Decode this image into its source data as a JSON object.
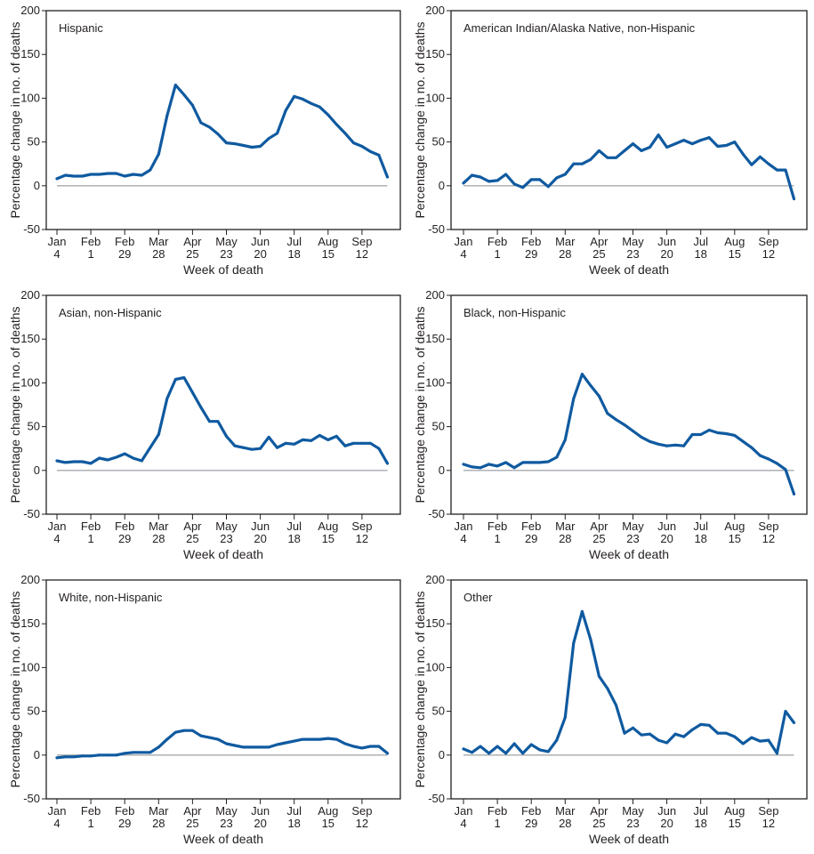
{
  "chart_data": [
    {
      "type": "line",
      "title": "Hispanic",
      "xlabel": "Week of death",
      "ylabel": "Percentage change in no. of deaths",
      "ylim": [
        -50,
        200
      ],
      "yticks": [
        "200",
        "150",
        "100",
        "50",
        "0",
        "-50"
      ],
      "grid": false,
      "values": [
        8,
        12,
        11,
        11,
        13,
        13,
        14,
        14,
        11,
        13,
        12,
        18,
        36,
        80,
        115,
        104,
        92,
        72,
        67,
        59,
        49,
        48,
        46,
        44,
        45,
        54,
        60,
        86,
        102,
        99,
        94,
        90,
        81,
        70,
        60,
        49,
        45,
        39,
        35,
        10
      ]
    },
    {
      "type": "line",
      "title": "American Indian/Alaska Native, non-Hispanic",
      "xlabel": "Week of death",
      "ylabel": "Percentage change in no. of deaths",
      "ylim": [
        -50,
        200
      ],
      "yticks": [
        "200",
        "150",
        "100",
        "50",
        "0",
        "-50"
      ],
      "grid": false,
      "values": [
        3,
        12,
        10,
        5,
        6,
        13,
        2,
        -2,
        7,
        7,
        -1,
        9,
        13,
        25,
        25,
        30,
        40,
        32,
        32,
        40,
        48,
        40,
        44,
        58,
        44,
        48,
        52,
        48,
        52,
        55,
        45,
        46,
        50,
        36,
        24,
        33,
        25,
        18,
        18,
        -15
      ]
    },
    {
      "type": "line",
      "title": "Asian, non-Hispanic",
      "xlabel": "Week of death",
      "ylabel": "Percentage change in no. of deaths",
      "ylim": [
        -50,
        200
      ],
      "yticks": [
        "200",
        "150",
        "100",
        "50",
        "0",
        "-50"
      ],
      "grid": false,
      "values": [
        11,
        9,
        10,
        10,
        8,
        14,
        12,
        15,
        19,
        14,
        11,
        26,
        41,
        82,
        104,
        106,
        89,
        72,
        56,
        56,
        39,
        28,
        26,
        24,
        25,
        38,
        26,
        31,
        30,
        35,
        34,
        40,
        35,
        39,
        28,
        31,
        31,
        31,
        25,
        8
      ]
    },
    {
      "type": "line",
      "title": "Black, non-Hispanic",
      "xlabel": "Week of death",
      "ylabel": "Percentage change in no. of deaths",
      "ylim": [
        -50,
        200
      ],
      "yticks": [
        "200",
        "150",
        "100",
        "50",
        "0",
        "-50"
      ],
      "grid": false,
      "values": [
        7,
        4,
        3,
        7,
        5,
        9,
        3,
        9,
        9,
        9,
        10,
        15,
        35,
        82,
        110,
        97,
        85,
        65,
        58,
        52,
        45,
        38,
        33,
        30,
        28,
        29,
        28,
        41,
        41,
        46,
        43,
        42,
        40,
        33,
        26,
        17,
        13,
        8,
        1,
        -27
      ]
    },
    {
      "type": "line",
      "title": "White, non-Hispanic",
      "xlabel": "Week of death",
      "ylabel": "Percentage change in no. of deaths",
      "ylim": [
        -50,
        200
      ],
      "yticks": [
        "200",
        "150",
        "100",
        "50",
        "0",
        "-50"
      ],
      "grid": false,
      "values": [
        -3,
        -2,
        -2,
        -1,
        -1,
        0,
        0,
        0,
        2,
        3,
        3,
        3,
        9,
        18,
        26,
        28,
        28,
        22,
        20,
        18,
        13,
        11,
        9,
        9,
        9,
        9,
        12,
        14,
        16,
        18,
        18,
        18,
        19,
        18,
        13,
        10,
        8,
        10,
        10,
        2
      ]
    },
    {
      "type": "line",
      "title": "Other",
      "xlabel": "Week of death",
      "ylabel": "Percentage change in no. of deaths",
      "ylim": [
        -50,
        200
      ],
      "yticks": [
        "200",
        "150",
        "100",
        "50",
        "0",
        "-50"
      ],
      "grid": false,
      "values": [
        7,
        3,
        10,
        2,
        10,
        2,
        13,
        2,
        12,
        6,
        4,
        17,
        43,
        128,
        164,
        132,
        90,
        76,
        57,
        25,
        31,
        23,
        24,
        17,
        14,
        24,
        21,
        29,
        35,
        34,
        25,
        25,
        21,
        13,
        20,
        16,
        17,
        2,
        50,
        37
      ]
    }
  ],
  "x_weeks": [
    "Jan 4",
    "Jan 11",
    "Jan 18",
    "Jan 25",
    "Feb 1",
    "Feb 8",
    "Feb 15",
    "Feb 22",
    "Feb 29",
    "Mar 7",
    "Mar 14",
    "Mar 21",
    "Mar 28",
    "Apr 4",
    "Apr 11",
    "Apr 18",
    "Apr 25",
    "May 2",
    "May 9",
    "May 16",
    "May 23",
    "May 30",
    "Jun 6",
    "Jun 13",
    "Jun 20",
    "Jun 27",
    "Jul 4",
    "Jul 11",
    "Jul 18",
    "Jul 25",
    "Aug 1",
    "Aug 8",
    "Aug 15",
    "Aug 22",
    "Aug 29",
    "Sep 5",
    "Sep 12",
    "Sep 19",
    "Sep 26",
    "Oct 3"
  ],
  "x_ticks": [
    [
      "Jan",
      "4"
    ],
    [
      "Feb",
      "1"
    ],
    [
      "Feb",
      "29"
    ],
    [
      "Mar",
      "28"
    ],
    [
      "Apr",
      "25"
    ],
    [
      "May",
      "23"
    ],
    [
      "Jun",
      "20"
    ],
    [
      "Jul",
      "18"
    ],
    [
      "Aug",
      "15"
    ],
    [
      "Sep",
      "12"
    ]
  ],
  "colors": {
    "line": "#0f5aa0",
    "zero_line": "#a7a9ac",
    "axis": "#231f20"
  }
}
